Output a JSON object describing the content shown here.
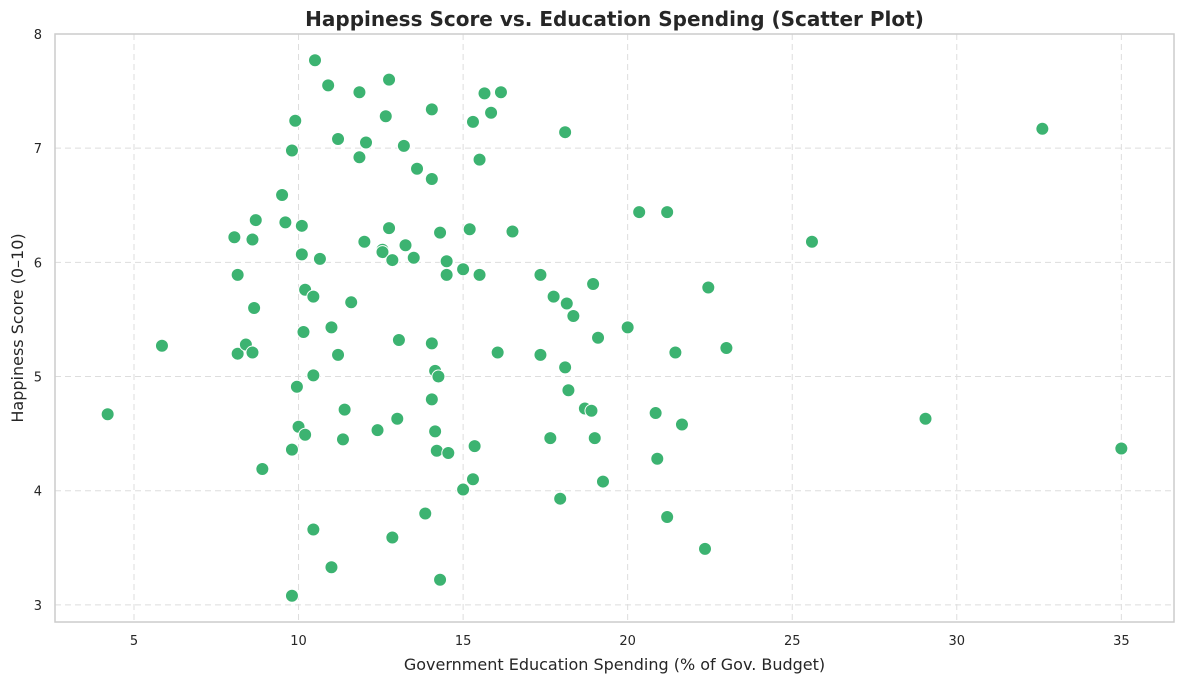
{
  "chart_data": {
    "type": "scatter",
    "title": "Happiness Score vs. Education Spending (Scatter Plot)",
    "xlabel": "Government Education Spending (% of Gov. Budget)",
    "ylabel": "Happiness Score (0–10)",
    "xlim": [
      2.6,
      36.6
    ],
    "ylim": [
      2.85,
      8.0
    ],
    "x_ticks": [
      5,
      10,
      15,
      20,
      25,
      30,
      35
    ],
    "y_ticks": [
      3,
      4,
      5,
      6,
      7,
      8
    ],
    "grid": true,
    "marker_color": "#3cb371",
    "points": [
      [
        4.2,
        4.67
      ],
      [
        5.85,
        5.27
      ],
      [
        8.05,
        6.22
      ],
      [
        8.15,
        5.89
      ],
      [
        8.15,
        5.2
      ],
      [
        8.4,
        5.28
      ],
      [
        8.6,
        6.2
      ],
      [
        8.6,
        5.21
      ],
      [
        8.65,
        5.6
      ],
      [
        8.7,
        6.37
      ],
      [
        8.9,
        4.19
      ],
      [
        9.5,
        6.59
      ],
      [
        9.6,
        6.35
      ],
      [
        9.8,
        6.98
      ],
      [
        9.8,
        4.36
      ],
      [
        9.8,
        3.08
      ],
      [
        9.9,
        7.24
      ],
      [
        9.95,
        4.91
      ],
      [
        10.0,
        4.56
      ],
      [
        10.1,
        6.32
      ],
      [
        10.1,
        6.07
      ],
      [
        10.15,
        5.39
      ],
      [
        10.2,
        5.76
      ],
      [
        10.2,
        4.49
      ],
      [
        10.5,
        7.77
      ],
      [
        10.45,
        5.7
      ],
      [
        10.45,
        5.01
      ],
      [
        10.45,
        3.66
      ],
      [
        10.65,
        6.03
      ],
      [
        10.9,
        7.55
      ],
      [
        11.0,
        5.43
      ],
      [
        11.0,
        3.33
      ],
      [
        11.2,
        7.08
      ],
      [
        11.2,
        5.19
      ],
      [
        11.35,
        4.45
      ],
      [
        11.4,
        4.71
      ],
      [
        11.6,
        5.65
      ],
      [
        11.85,
        7.49
      ],
      [
        11.85,
        6.92
      ],
      [
        12.0,
        6.18
      ],
      [
        12.05,
        7.05
      ],
      [
        12.4,
        4.53
      ],
      [
        12.55,
        6.11
      ],
      [
        12.55,
        6.09
      ],
      [
        12.65,
        7.28
      ],
      [
        12.75,
        7.6
      ],
      [
        12.75,
        6.3
      ],
      [
        12.85,
        6.02
      ],
      [
        12.85,
        3.59
      ],
      [
        13.0,
        4.63
      ],
      [
        13.05,
        5.32
      ],
      [
        13.2,
        7.02
      ],
      [
        13.25,
        6.15
      ],
      [
        13.5,
        6.04
      ],
      [
        13.6,
        6.82
      ],
      [
        13.85,
        3.8
      ],
      [
        14.05,
        7.34
      ],
      [
        14.05,
        6.73
      ],
      [
        14.05,
        5.29
      ],
      [
        14.05,
        4.8
      ],
      [
        14.15,
        5.05
      ],
      [
        14.15,
        4.52
      ],
      [
        14.2,
        4.35
      ],
      [
        14.25,
        5.0
      ],
      [
        14.3,
        6.26
      ],
      [
        14.3,
        3.22
      ],
      [
        14.5,
        6.01
      ],
      [
        14.5,
        5.89
      ],
      [
        14.55,
        4.33
      ],
      [
        15.0,
        5.94
      ],
      [
        15.0,
        4.01
      ],
      [
        15.2,
        6.29
      ],
      [
        15.3,
        7.23
      ],
      [
        15.3,
        4.1
      ],
      [
        15.35,
        4.39
      ],
      [
        15.5,
        6.9
      ],
      [
        15.5,
        5.89
      ],
      [
        15.65,
        7.48
      ],
      [
        15.85,
        7.31
      ],
      [
        16.05,
        5.21
      ],
      [
        16.15,
        7.49
      ],
      [
        16.5,
        6.27
      ],
      [
        17.35,
        5.89
      ],
      [
        17.35,
        5.19
      ],
      [
        17.65,
        4.46
      ],
      [
        17.75,
        5.7
      ],
      [
        17.95,
        3.93
      ],
      [
        18.1,
        7.14
      ],
      [
        18.1,
        5.08
      ],
      [
        18.15,
        5.64
      ],
      [
        18.2,
        4.88
      ],
      [
        18.35,
        5.53
      ],
      [
        18.7,
        4.72
      ],
      [
        18.9,
        4.7
      ],
      [
        18.95,
        5.81
      ],
      [
        19.0,
        4.46
      ],
      [
        19.1,
        5.34
      ],
      [
        19.25,
        4.08
      ],
      [
        20.0,
        5.43
      ],
      [
        20.35,
        6.44
      ],
      [
        20.85,
        4.68
      ],
      [
        20.9,
        4.28
      ],
      [
        21.2,
        6.44
      ],
      [
        21.2,
        3.77
      ],
      [
        21.45,
        5.21
      ],
      [
        21.65,
        4.58
      ],
      [
        22.35,
        3.49
      ],
      [
        22.45,
        5.78
      ],
      [
        23.0,
        5.25
      ],
      [
        25.6,
        6.18
      ],
      [
        29.05,
        4.63
      ],
      [
        32.6,
        7.17
      ],
      [
        35.0,
        4.37
      ]
    ]
  }
}
